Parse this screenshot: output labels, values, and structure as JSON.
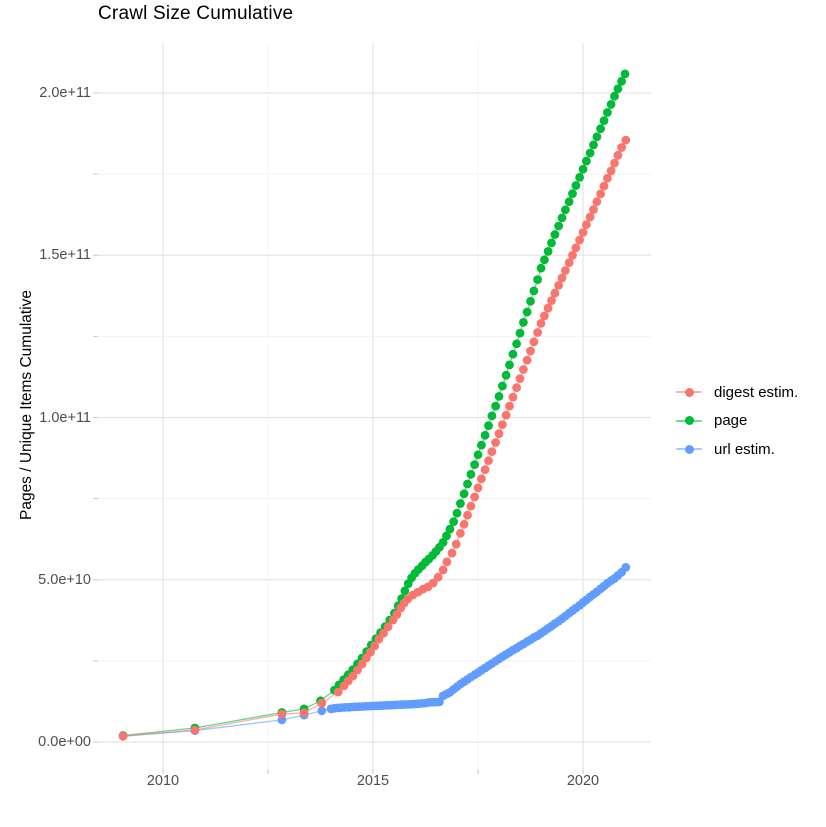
{
  "chart_data": {
    "type": "line",
    "style": "scatter points with thin connecting lines (ggplot default hue palette)",
    "title": "Crawl Size Cumulative",
    "xlabel": "",
    "ylabel": "Pages / Unique Items Cumulative",
    "value_unit": "point values are in billions (1e9) of pages / unique items",
    "grid": true,
    "legend_position": "right-center",
    "x_axis": {
      "ticks": [
        {
          "label": "2010",
          "year": 2010
        },
        {
          "label": "2015",
          "year": 2015
        },
        {
          "label": "2020",
          "year": 2020
        }
      ],
      "minor_years": [
        2012.5,
        2017.5
      ],
      "range_years": [
        2008.45,
        2021.62
      ]
    },
    "y_axis": {
      "ticks": [
        {
          "label": "0.0e+00",
          "value_e9": 0
        },
        {
          "label": "5.0e+10",
          "value_e9": 50
        },
        {
          "label": "1.0e+11",
          "value_e9": 100
        },
        {
          "label": "1.5e+11",
          "value_e9": 150
        },
        {
          "label": "2.0e+11",
          "value_e9": 200
        }
      ],
      "minor_e9": [
        25,
        75,
        125,
        175
      ],
      "range_e9": [
        -8.5,
        216
      ]
    },
    "legend": [
      {
        "label": "digest estim.",
        "color": "#F8766D"
      },
      {
        "label": "page",
        "color": "#00BA38"
      },
      {
        "label": "url estim.",
        "color": "#619CFF"
      }
    ],
    "series": [
      {
        "name": "page",
        "color": "#00BA38",
        "points": [
          [
            2009.05,
            2.0
          ],
          [
            2010.76,
            4.3
          ],
          [
            2012.83,
            9.1
          ],
          [
            2013.36,
            10.2
          ],
          [
            2013.75,
            12.7
          ],
          [
            2014.08,
            16.0
          ],
          [
            2014.19,
            17.6
          ],
          [
            2014.3,
            19.2
          ],
          [
            2014.41,
            20.7
          ],
          [
            2014.52,
            22.3
          ],
          [
            2014.63,
            24.1
          ],
          [
            2014.74,
            25.9
          ],
          [
            2014.85,
            27.9
          ],
          [
            2014.96,
            29.9
          ],
          [
            2015.07,
            31.8
          ],
          [
            2015.18,
            33.7
          ],
          [
            2015.29,
            35.6
          ],
          [
            2015.4,
            37.6
          ],
          [
            2015.51,
            39.7
          ],
          [
            2015.6,
            42.0
          ],
          [
            2015.68,
            44.2
          ],
          [
            2015.76,
            46.6
          ],
          [
            2015.84,
            48.8
          ],
          [
            2015.92,
            50.6
          ],
          [
            2016.0,
            52.0
          ],
          [
            2016.08,
            53.2
          ],
          [
            2016.17,
            54.3
          ],
          [
            2016.25,
            55.4
          ],
          [
            2016.33,
            56.4
          ],
          [
            2016.42,
            57.5
          ],
          [
            2016.5,
            58.7
          ],
          [
            2016.58,
            60.0
          ],
          [
            2016.67,
            61.5
          ],
          [
            2016.75,
            63.5
          ],
          [
            2016.83,
            65.6
          ],
          [
            2016.92,
            67.9
          ],
          [
            2017.0,
            70.5
          ],
          [
            2017.08,
            73.5
          ],
          [
            2017.17,
            76.5
          ],
          [
            2017.25,
            79.5
          ],
          [
            2017.33,
            82.5
          ],
          [
            2017.42,
            85.5
          ],
          [
            2017.5,
            88.5
          ],
          [
            2017.58,
            91.5
          ],
          [
            2017.67,
            94.5
          ],
          [
            2017.75,
            97.5
          ],
          [
            2017.83,
            100.5
          ],
          [
            2017.92,
            103.5
          ],
          [
            2018.0,
            106.5
          ],
          [
            2018.08,
            109.7
          ],
          [
            2018.17,
            113.0
          ],
          [
            2018.25,
            116.2
          ],
          [
            2018.33,
            119.5
          ],
          [
            2018.42,
            122.7
          ],
          [
            2018.5,
            126.0
          ],
          [
            2018.58,
            129.3
          ],
          [
            2018.67,
            132.5
          ],
          [
            2018.75,
            135.8
          ],
          [
            2018.83,
            139.0
          ],
          [
            2018.92,
            142.5
          ],
          [
            2019.0,
            146.0
          ],
          [
            2019.08,
            148.6
          ],
          [
            2019.17,
            151.2
          ],
          [
            2019.25,
            153.8
          ],
          [
            2019.33,
            156.4
          ],
          [
            2019.42,
            159.0
          ],
          [
            2019.5,
            161.5
          ],
          [
            2019.58,
            164.0
          ],
          [
            2019.67,
            166.5
          ],
          [
            2019.75,
            169.0
          ],
          [
            2019.83,
            171.5
          ],
          [
            2019.92,
            174.0
          ],
          [
            2020.0,
            176.5
          ],
          [
            2020.08,
            179.0
          ],
          [
            2020.17,
            181.5
          ],
          [
            2020.25,
            184.0
          ],
          [
            2020.33,
            186.5
          ],
          [
            2020.42,
            189.0
          ],
          [
            2020.5,
            191.5
          ],
          [
            2020.58,
            194.0
          ],
          [
            2020.67,
            196.5
          ],
          [
            2020.75,
            199.0
          ],
          [
            2020.83,
            201.3
          ],
          [
            2020.92,
            203.6
          ],
          [
            2021.0,
            205.9
          ]
        ]
      },
      {
        "name": "url estim.",
        "color": "#619CFF",
        "points": [
          [
            2009.05,
            1.8
          ],
          [
            2010.76,
            3.5
          ],
          [
            2012.83,
            6.8
          ],
          [
            2013.36,
            8.3
          ],
          [
            2013.78,
            9.6
          ],
          [
            2014.0,
            10.2
          ],
          [
            2014.08,
            10.4
          ],
          [
            2014.17,
            10.5
          ],
          [
            2014.25,
            10.6
          ],
          [
            2014.33,
            10.65
          ],
          [
            2014.42,
            10.7
          ],
          [
            2014.5,
            10.8
          ],
          [
            2014.58,
            10.85
          ],
          [
            2014.67,
            10.9
          ],
          [
            2014.75,
            10.95
          ],
          [
            2014.83,
            11.0
          ],
          [
            2014.92,
            11.05
          ],
          [
            2015.0,
            11.1
          ],
          [
            2015.08,
            11.15
          ],
          [
            2015.17,
            11.2
          ],
          [
            2015.25,
            11.25
          ],
          [
            2015.33,
            11.3
          ],
          [
            2015.42,
            11.35
          ],
          [
            2015.5,
            11.4
          ],
          [
            2015.58,
            11.45
          ],
          [
            2015.67,
            11.5
          ],
          [
            2015.75,
            11.55
          ],
          [
            2015.83,
            11.6
          ],
          [
            2015.92,
            11.65
          ],
          [
            2016.0,
            11.7
          ],
          [
            2016.08,
            11.8
          ],
          [
            2016.17,
            11.9
          ],
          [
            2016.25,
            12.0
          ],
          [
            2016.33,
            12.2
          ],
          [
            2016.42,
            12.25
          ],
          [
            2016.5,
            12.3
          ],
          [
            2016.58,
            12.35
          ],
          [
            2016.67,
            14.2
          ],
          [
            2016.75,
            14.8
          ],
          [
            2016.83,
            15.3
          ],
          [
            2016.92,
            16.2
          ],
          [
            2017.0,
            17.0
          ],
          [
            2017.08,
            17.8
          ],
          [
            2017.17,
            18.6
          ],
          [
            2017.25,
            19.3
          ],
          [
            2017.33,
            20.0
          ],
          [
            2017.42,
            20.7
          ],
          [
            2017.5,
            21.4
          ],
          [
            2017.58,
            22.1
          ],
          [
            2017.67,
            22.8
          ],
          [
            2017.75,
            23.5
          ],
          [
            2017.83,
            24.2
          ],
          [
            2017.92,
            24.9
          ],
          [
            2018.0,
            25.6
          ],
          [
            2018.08,
            26.3
          ],
          [
            2018.17,
            27.0
          ],
          [
            2018.25,
            27.6
          ],
          [
            2018.33,
            28.3
          ],
          [
            2018.42,
            28.9
          ],
          [
            2018.5,
            29.6
          ],
          [
            2018.58,
            30.2
          ],
          [
            2018.67,
            30.9
          ],
          [
            2018.75,
            31.5
          ],
          [
            2018.83,
            32.2
          ],
          [
            2018.92,
            32.8
          ],
          [
            2019.0,
            33.5
          ],
          [
            2019.08,
            34.2
          ],
          [
            2019.17,
            35.0
          ],
          [
            2019.25,
            35.7
          ],
          [
            2019.33,
            36.5
          ],
          [
            2019.42,
            37.2
          ],
          [
            2019.5,
            38.0
          ],
          [
            2019.58,
            38.8
          ],
          [
            2019.67,
            39.7
          ],
          [
            2019.75,
            40.5
          ],
          [
            2019.83,
            41.3
          ],
          [
            2019.92,
            42.1
          ],
          [
            2020.0,
            43.0
          ],
          [
            2020.08,
            43.8
          ],
          [
            2020.17,
            44.7
          ],
          [
            2020.25,
            45.5
          ],
          [
            2020.33,
            46.3
          ],
          [
            2020.42,
            47.2
          ],
          [
            2020.5,
            48.0
          ],
          [
            2020.58,
            48.9
          ],
          [
            2020.67,
            49.7
          ],
          [
            2020.75,
            50.4
          ],
          [
            2020.83,
            51.3
          ],
          [
            2020.92,
            52.3
          ],
          [
            2021.02,
            53.8
          ]
        ]
      },
      {
        "name": "digest estim.",
        "color": "#F8766D",
        "points": [
          [
            2009.05,
            1.8
          ],
          [
            2010.76,
            3.7
          ],
          [
            2012.83,
            8.6
          ],
          [
            2013.36,
            9.0
          ],
          [
            2013.78,
            12.0
          ],
          [
            2014.17,
            15.4
          ],
          [
            2014.31,
            17.3
          ],
          [
            2014.41,
            18.8
          ],
          [
            2014.52,
            20.3
          ],
          [
            2014.63,
            22.2
          ],
          [
            2014.74,
            24.0
          ],
          [
            2014.84,
            25.9
          ],
          [
            2014.94,
            27.7
          ],
          [
            2015.04,
            29.6
          ],
          [
            2015.14,
            31.7
          ],
          [
            2015.25,
            33.5
          ],
          [
            2015.36,
            35.5
          ],
          [
            2015.48,
            37.6
          ],
          [
            2015.57,
            39.3
          ],
          [
            2015.66,
            41.3
          ],
          [
            2015.74,
            42.8
          ],
          [
            2015.83,
            44.1
          ],
          [
            2015.95,
            45.3
          ],
          [
            2016.07,
            46.2
          ],
          [
            2016.19,
            47.1
          ],
          [
            2016.31,
            47.8
          ],
          [
            2016.43,
            49.0
          ],
          [
            2016.55,
            50.8
          ],
          [
            2016.67,
            53.0
          ],
          [
            2016.76,
            55.5
          ],
          [
            2016.88,
            58.2
          ],
          [
            2016.98,
            61.0
          ],
          [
            2017.08,
            64.3
          ],
          [
            2017.17,
            67.1
          ],
          [
            2017.25,
            69.9
          ],
          [
            2017.33,
            72.7
          ],
          [
            2017.42,
            75.5
          ],
          [
            2017.5,
            78.3
          ],
          [
            2017.58,
            81.1
          ],
          [
            2017.67,
            83.9
          ],
          [
            2017.75,
            86.7
          ],
          [
            2017.83,
            89.5
          ],
          [
            2017.92,
            92.3
          ],
          [
            2018.0,
            95.0
          ],
          [
            2018.08,
            97.8
          ],
          [
            2018.17,
            100.7
          ],
          [
            2018.25,
            103.5
          ],
          [
            2018.33,
            106.3
          ],
          [
            2018.42,
            109.2
          ],
          [
            2018.5,
            112.0
          ],
          [
            2018.58,
            114.8
          ],
          [
            2018.67,
            117.7
          ],
          [
            2018.75,
            120.5
          ],
          [
            2018.83,
            123.3
          ],
          [
            2018.92,
            126.2
          ],
          [
            2019.0,
            129.0
          ],
          [
            2019.08,
            131.3
          ],
          [
            2019.17,
            133.7
          ],
          [
            2019.25,
            136.0
          ],
          [
            2019.33,
            138.3
          ],
          [
            2019.42,
            140.7
          ],
          [
            2019.5,
            143.0
          ],
          [
            2019.58,
            145.3
          ],
          [
            2019.67,
            147.7
          ],
          [
            2019.75,
            150.0
          ],
          [
            2019.83,
            152.3
          ],
          [
            2019.92,
            154.7
          ],
          [
            2020.0,
            157.0
          ],
          [
            2020.08,
            159.4
          ],
          [
            2020.17,
            161.8
          ],
          [
            2020.25,
            164.1
          ],
          [
            2020.33,
            166.5
          ],
          [
            2020.42,
            168.9
          ],
          [
            2020.5,
            171.3
          ],
          [
            2020.58,
            173.7
          ],
          [
            2020.67,
            176.0
          ],
          [
            2020.75,
            178.4
          ],
          [
            2020.83,
            180.8
          ],
          [
            2020.92,
            183.2
          ],
          [
            2021.02,
            185.5
          ]
        ]
      }
    ]
  }
}
